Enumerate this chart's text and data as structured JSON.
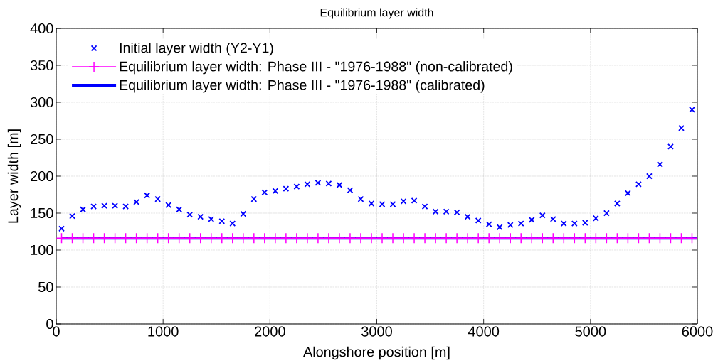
{
  "chart_data": {
    "type": "line",
    "title": "Equilibrium layer width",
    "xlabel": "Alongshore position [m]",
    "ylabel": "Layer width [m]",
    "x": [
      50,
      150,
      250,
      350,
      450,
      550,
      650,
      750,
      850,
      950,
      1050,
      1150,
      1250,
      1350,
      1450,
      1550,
      1650,
      1750,
      1850,
      1950,
      2050,
      2150,
      2250,
      2350,
      2450,
      2550,
      2650,
      2750,
      2850,
      2950,
      3050,
      3150,
      3250,
      3350,
      3450,
      3550,
      3650,
      3750,
      3850,
      3950,
      4050,
      4150,
      4250,
      4350,
      4450,
      4550,
      4650,
      4750,
      4850,
      4950,
      5050,
      5150,
      5250,
      5350,
      5450,
      5550,
      5650,
      5750,
      5850,
      5950
    ],
    "series": [
      {
        "name": "Initial layer width (Y2-Y1)",
        "type": "scatter",
        "marker": "cross",
        "color": "#0000ff",
        "values": [
          129,
          146,
          155,
          159,
          160,
          160,
          159,
          165,
          174,
          169,
          161,
          155,
          148,
          145,
          142,
          139,
          136,
          149,
          169,
          178,
          180,
          183,
          186,
          189,
          191,
          190,
          188,
          181,
          169,
          163,
          162,
          162,
          166,
          167,
          159,
          152,
          152,
          151,
          145,
          140,
          135,
          131,
          134,
          136,
          141,
          147,
          142,
          136,
          136,
          137,
          143,
          150,
          163,
          177,
          189,
          200,
          216,
          240,
          265,
          290
        ]
      },
      {
        "name": "Equilibrium layer width: Phase III - \"1976-1988\" (non-calibrated)",
        "marker": "plus",
        "color": "#ff00ff",
        "values": [
          116,
          116,
          116,
          116,
          116,
          116,
          116,
          116,
          116,
          116,
          116,
          116,
          116,
          116,
          116,
          116,
          116,
          116,
          116,
          116,
          116,
          116,
          116,
          116,
          116,
          116,
          116,
          116,
          116,
          116,
          116,
          116,
          116,
          116,
          116,
          116,
          116,
          116,
          116,
          116,
          116,
          116,
          116,
          116,
          116,
          116,
          116,
          116,
          116,
          116,
          116,
          116,
          116,
          116,
          116,
          116,
          116,
          116,
          116,
          116
        ]
      },
      {
        "name": "Equilibrium layer width: Phase III - \"1976-1988\" (calibrated)",
        "color": "#0000ff",
        "x": [
          50,
          6000
        ],
        "values": [
          116,
          116
        ]
      }
    ],
    "xlim": [
      0,
      6000
    ],
    "ylim": [
      0,
      400
    ],
    "xticks": [
      0,
      1000,
      2000,
      3000,
      4000,
      5000,
      6000
    ],
    "yticks": [
      0,
      50,
      100,
      150,
      200,
      250,
      300,
      350,
      400
    ],
    "grid": true,
    "legend": "top left"
  }
}
